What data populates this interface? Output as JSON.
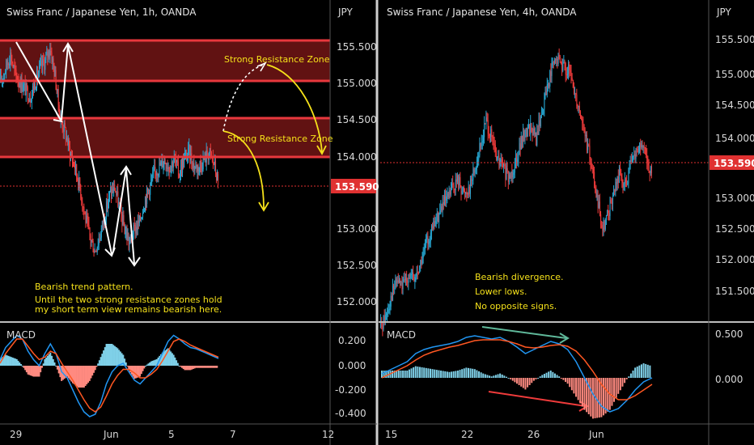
{
  "colors": {
    "background": "#000000",
    "up_candle": "#26a6d1",
    "down_candle": "#ef3b3b",
    "zone_fill": "#6b1414",
    "zone_line": "#e8383d",
    "annotation": "#f5e11a",
    "price_badge": "#e03131",
    "macd_line": "#2196f3",
    "signal_line": "#ff5722",
    "divergence_top": "#5fb89a",
    "divergence_bottom": "#ef3b3b",
    "axis_text": "#d8d8d8",
    "arrow_white": "#ffffff"
  },
  "left_panel": {
    "title": "Swiss Franc / Japanese Yen, 1h, OANDA",
    "currency": "JPY",
    "price_ticks": [
      "155.500",
      "155.000",
      "154.500",
      "154.000",
      "153.000",
      "152.500",
      "152.000"
    ],
    "price_badge": "153.590",
    "x_ticks": [
      "29",
      "Jun",
      "5",
      "7",
      "12"
    ],
    "zone_label_top": "Strong Resistance Zone",
    "zone_label_bottom": "Strong Resistance Zone",
    "note_lines": [
      "Bearish trend pattern.",
      "Until the two strong resistance zones hold",
      "my short term view remains bearish here."
    ],
    "macd_label": "MACD",
    "macd_ticks": [
      "0.200",
      "0.000",
      "-0.200",
      "-0.400"
    ]
  },
  "right_panel": {
    "title": "Swiss Franc / Japanese Yen, 4h, OANDA",
    "currency": "JPY",
    "price_ticks": [
      "155.500",
      "155.000",
      "154.500",
      "154.000",
      "153.000",
      "152.500",
      "152.000",
      "151.500"
    ],
    "price_badge": "153.590",
    "x_ticks": [
      "15",
      "22",
      "26",
      "Jun"
    ],
    "note_lines": [
      "Bearish divergence.",
      "Lower lows.",
      "No opposite signs."
    ],
    "macd_label": "MACD",
    "macd_ticks": [
      "0.500",
      "0.000"
    ]
  },
  "chart_data": [
    {
      "type": "candlestick",
      "title": "Swiss Franc / Japanese Yen, 1h, OANDA",
      "ylabel": "JPY",
      "ylim": [
        151.7,
        156.0
      ],
      "last_price": 153.59,
      "resistance_zones": [
        [
          155.0,
          155.55
        ],
        [
          153.98,
          154.5
        ]
      ],
      "path_close": [
        155.1,
        155.3,
        155.5,
        155.2,
        155.1,
        155.0,
        154.9,
        155.1,
        155.3,
        155.4,
        155.6,
        155.2,
        154.6,
        154.4,
        154.1,
        153.9,
        153.6,
        153.2,
        152.9,
        152.7,
        152.9,
        153.2,
        153.5,
        153.6,
        153.3,
        153.0,
        152.8,
        153.0,
        153.1,
        153.4,
        153.6,
        153.8,
        153.9,
        154.0,
        153.9,
        154.0,
        153.8,
        154.0,
        154.1,
        153.9,
        153.9,
        154.0,
        154.1,
        153.95,
        153.6
      ],
      "macd": [
        0.05,
        0.15,
        0.2,
        0.25,
        0.22,
        0.12,
        0.05,
        0.0,
        0.1,
        0.18,
        0.1,
        -0.05,
        -0.1,
        -0.2,
        -0.3,
        -0.38,
        -0.42,
        -0.4,
        -0.3,
        -0.15,
        -0.05,
        0.0,
        0.02,
        -0.05,
        -0.12,
        -0.15,
        -0.1,
        -0.05,
        0.0,
        0.1,
        0.2,
        0.25,
        0.22,
        0.18,
        0.15,
        0.14,
        0.12,
        0.1,
        0.08,
        0.06
      ],
      "signal": [
        0.02,
        0.1,
        0.16,
        0.22,
        0.22,
        0.16,
        0.1,
        0.05,
        0.07,
        0.12,
        0.1,
        0.02,
        -0.05,
        -0.12,
        -0.2,
        -0.28,
        -0.35,
        -0.38,
        -0.34,
        -0.25,
        -0.15,
        -0.08,
        -0.03,
        -0.03,
        -0.06,
        -0.1,
        -0.1,
        -0.07,
        -0.03,
        0.04,
        0.12,
        0.2,
        0.22,
        0.2,
        0.17,
        0.15,
        0.13,
        0.11,
        0.09,
        0.07
      ]
    },
    {
      "type": "candlestick",
      "title": "Swiss Franc / Japanese Yen, 4h, OANDA",
      "ylabel": "JPY",
      "ylim": [
        151.5,
        156.0
      ],
      "last_price": 153.59,
      "path_close": [
        151.4,
        151.6,
        151.9,
        152.1,
        152.0,
        152.2,
        152.1,
        152.3,
        152.6,
        152.8,
        153.0,
        153.2,
        153.3,
        153.5,
        153.6,
        153.4,
        153.5,
        153.8,
        154.1,
        154.5,
        154.2,
        153.9,
        153.8,
        153.6,
        153.8,
        154.1,
        154.3,
        154.4,
        154.2,
        154.6,
        155.0,
        155.3,
        155.4,
        155.3,
        155.2,
        154.9,
        154.6,
        154.2,
        153.8,
        153.3,
        152.9,
        153.1,
        153.4,
        153.7,
        153.5,
        153.8,
        154.0,
        154.1,
        153.9,
        153.6
      ],
      "macd": [
        0.05,
        0.1,
        0.15,
        0.2,
        0.3,
        0.35,
        0.38,
        0.4,
        0.42,
        0.45,
        0.5,
        0.52,
        0.5,
        0.48,
        0.5,
        0.45,
        0.38,
        0.3,
        0.35,
        0.4,
        0.45,
        0.42,
        0.35,
        0.2,
        0.0,
        -0.2,
        -0.35,
        -0.42,
        -0.38,
        -0.28,
        -0.15,
        -0.05,
        0.0
      ],
      "signal": [
        0.0,
        0.05,
        0.1,
        0.15,
        0.22,
        0.28,
        0.32,
        0.35,
        0.38,
        0.4,
        0.43,
        0.46,
        0.47,
        0.47,
        0.47,
        0.45,
        0.42,
        0.38,
        0.37,
        0.38,
        0.4,
        0.41,
        0.39,
        0.33,
        0.22,
        0.08,
        -0.08,
        -0.2,
        -0.27,
        -0.27,
        -0.22,
        -0.15,
        -0.08
      ]
    }
  ]
}
